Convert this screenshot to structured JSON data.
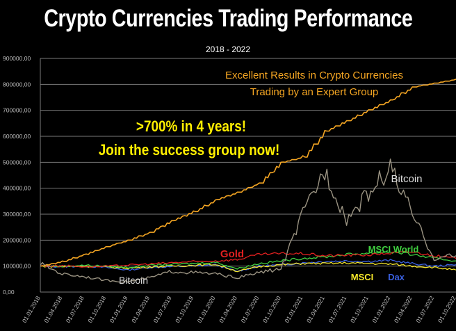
{
  "chart_data": {
    "type": "line",
    "title": "Crypto Currencies Trading Performance",
    "subtitle": "2018 - 2022",
    "ylim": [
      0,
      900000
    ],
    "y_ticks": [
      0,
      100000,
      200000,
      300000,
      400000,
      500000,
      600000,
      700000,
      800000,
      900000
    ],
    "y_tick_labels": [
      "0,00",
      "100000,00",
      "200000,00",
      "300000,00",
      "400000,00",
      "500000,00",
      "600000,00",
      "700000,00",
      "800000,00",
      "900000,00"
    ],
    "x_tick_labels": [
      "01.01.2018",
      "01.04.2018",
      "01.07.2018",
      "01.10.2018",
      "01.01.2019",
      "01.04.2019",
      "01.07.2019",
      "01.10.2019",
      "01.01.2020",
      "01.04.2020",
      "01.07.2020",
      "01.10.2020",
      "01.01.2021",
      "01.04.2021",
      "01.07.2021",
      "01.10.2021",
      "01.01.2022",
      "01.04.2022",
      "01.07.2022",
      "01.10.2022"
    ],
    "grid": true,
    "series": [
      {
        "name": "Crypto",
        "color": "#f5a623",
        "values": [
          100000,
          118000,
          145000,
          175000,
          200000,
          230000,
          275000,
          310000,
          355000,
          385000,
          420000,
          500000,
          520000,
          620000,
          660000,
          700000,
          740000,
          790000,
          805000,
          820000
        ]
      },
      {
        "name": "Bitcoin",
        "color": "#9a9382",
        "values": [
          110000,
          70000,
          60000,
          45000,
          40000,
          55000,
          80000,
          75000,
          70000,
          55000,
          75000,
          90000,
          300000,
          470000,
          280000,
          380000,
          480000,
          300000,
          130000,
          140000
        ]
      },
      {
        "name": "Gold",
        "color": "#e02020",
        "values": [
          100000,
          102000,
          98000,
          99000,
          104000,
          108000,
          113000,
          117000,
          120000,
          125000,
          145000,
          148000,
          148000,
          140000,
          142000,
          143000,
          150000,
          155000,
          140000,
          130000
        ]
      },
      {
        "name": "MSCI World",
        "color": "#40d040",
        "values": [
          100000,
          100000,
          103000,
          100000,
          95000,
          103000,
          107000,
          110000,
          115000,
          90000,
          110000,
          120000,
          130000,
          135000,
          145000,
          150000,
          155000,
          145000,
          130000,
          120000
        ]
      },
      {
        "name": "MSCI",
        "color": "#f5e62a",
        "values": [
          100000,
          98000,
          100000,
          97000,
          92000,
          97000,
          100000,
          103000,
          107000,
          80000,
          98000,
          105000,
          110000,
          110000,
          112000,
          110000,
          108000,
          100000,
          95000,
          85000
        ]
      },
      {
        "name": "Dax",
        "color": "#3a60e0",
        "values": [
          100000,
          98000,
          100000,
          95000,
          85000,
          95000,
          98000,
          100000,
          105000,
          80000,
          100000,
          105000,
          112000,
          118000,
          120000,
          118000,
          122000,
          110000,
          100000,
          105000
        ]
      }
    ],
    "annotations": [
      {
        "text": "Excellent Results in Crypto Currencies",
        "color": "#f5a623"
      },
      {
        "text": "Trading by an Expert Group",
        "color": "#f5a623"
      },
      {
        "text": ">700% in 4 years!",
        "color": "#ffee00"
      },
      {
        "text": "Join the success group now!",
        "color": "#ffee00"
      },
      {
        "text": "Bitcoin",
        "color": "#dddddd"
      },
      {
        "text": "Gold",
        "color": "#e02020"
      },
      {
        "text": "MSCI World",
        "color": "#40d040"
      },
      {
        "text": "Bitcoin",
        "color": "#dddddd"
      },
      {
        "text": "MSCI",
        "color": "#f5e62a"
      },
      {
        "text": "Dax",
        "color": "#3a60e0"
      }
    ]
  }
}
